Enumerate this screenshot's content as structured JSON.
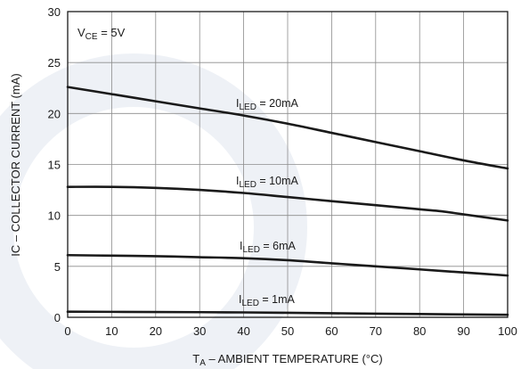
{
  "chart_data": {
    "type": "line",
    "xlabel": {
      "main": "T",
      "sub": "A",
      "rest": " – AMBIENT TEMPERATURE (°C)"
    },
    "ylabel": "IC – COLLECTOR CURRENT (mA)",
    "xlim": [
      0,
      100
    ],
    "ylim": [
      0,
      30
    ],
    "x_ticks": [
      "0",
      "10",
      "20",
      "30",
      "40",
      "50",
      "60",
      "70",
      "80",
      "90",
      "100"
    ],
    "y_ticks": [
      "0",
      "5",
      "10",
      "15",
      "20",
      "25",
      "30"
    ],
    "grid": true,
    "annotation": {
      "main": "V",
      "sub": "CE",
      "rest": " = 5V"
    },
    "colors": {
      "line": "#1a1a1a",
      "grid": "#8c8c8c",
      "background": "#ffffff",
      "watermark": "#eef1f6"
    },
    "series": [
      {
        "label": {
          "main": "I",
          "sub": "LED",
          "rest": " = 20mA"
        },
        "x": [
          0,
          10,
          20,
          30,
          40,
          50,
          60,
          70,
          80,
          90,
          100
        ],
        "y": [
          22.6,
          21.9,
          21.2,
          20.5,
          19.8,
          19.0,
          18.1,
          17.2,
          16.3,
          15.4,
          14.6
        ]
      },
      {
        "label": {
          "main": "I",
          "sub": "LED",
          "rest": " = 10mA"
        },
        "x": [
          0,
          10,
          20,
          30,
          40,
          50,
          60,
          70,
          80,
          85,
          90,
          100
        ],
        "y": [
          12.8,
          12.8,
          12.7,
          12.5,
          12.2,
          11.8,
          11.4,
          11.0,
          10.6,
          10.4,
          10.1,
          9.5
        ]
      },
      {
        "label": {
          "main": "I",
          "sub": "LED",
          "rest": " = 6mA"
        },
        "x": [
          0,
          10,
          20,
          30,
          40,
          50,
          60,
          70,
          80,
          90,
          100
        ],
        "y": [
          6.1,
          6.05,
          6.0,
          5.9,
          5.8,
          5.6,
          5.3,
          5.0,
          4.7,
          4.4,
          4.1
        ]
      },
      {
        "label": {
          "main": "I",
          "sub": "LED",
          "rest": " = 1mA"
        },
        "x": [
          0,
          20,
          40,
          60,
          80,
          100
        ],
        "y": [
          0.55,
          0.52,
          0.48,
          0.4,
          0.32,
          0.25
        ]
      }
    ]
  }
}
